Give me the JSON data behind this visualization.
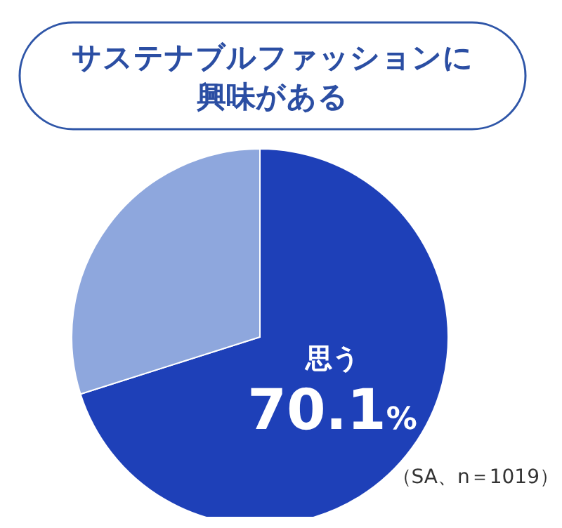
{
  "chart_data": {
    "type": "pie",
    "title": "サステナブルファッションに興味がある",
    "categories": [
      "思う",
      null
    ],
    "values": [
      70.1,
      29.9
    ],
    "colors": [
      "#1e40b8",
      "#8ea7dd"
    ],
    "value_labels": [
      "70.1%",
      null
    ],
    "annotations": [
      "（SA、n＝1019）"
    ]
  }
}
